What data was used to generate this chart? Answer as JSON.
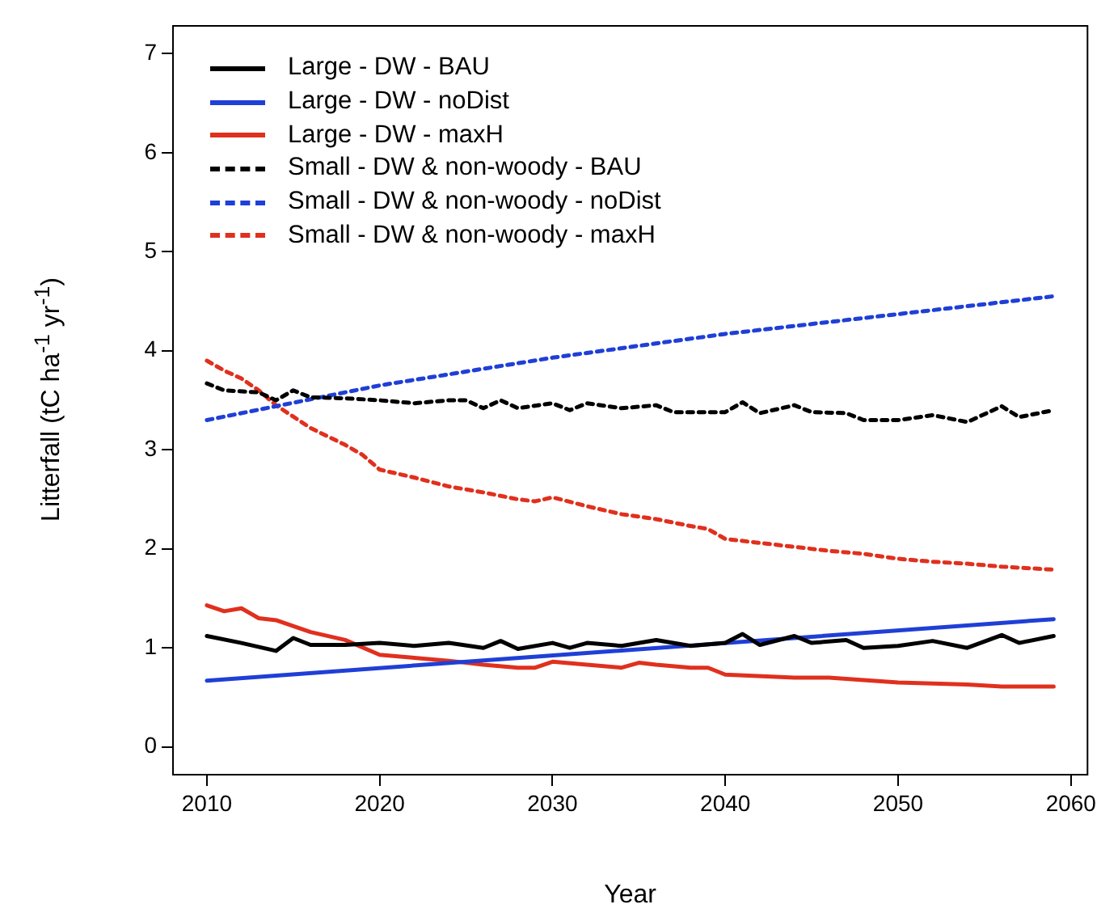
{
  "chart_data": {
    "type": "line",
    "xlabel": "Year",
    "ylabel": "Litterfall (tC ha$^{-1}$ yr$^{-1}$)",
    "xlim": [
      2008.04,
      2060.96
    ],
    "ylim": [
      -0.28,
      7.28
    ],
    "xticks": [
      2010,
      2020,
      2030,
      2040,
      2050,
      2060
    ],
    "yticks": [
      0,
      1,
      2,
      3,
      4,
      5,
      6,
      7
    ],
    "legend": "top left",
    "marker": "none",
    "series": [
      {
        "name": "Large - DW - BAU",
        "color": "#000000",
        "line_style": "solid",
        "x": [
          2010,
          2012,
          2014,
          2015,
          2016,
          2018,
          2020,
          2022,
          2024,
          2026,
          2027,
          2028,
          2030,
          2031,
          2032,
          2034,
          2036,
          2038,
          2040,
          2041,
          2042,
          2044,
          2045,
          2047,
          2048,
          2050,
          2052,
          2054,
          2056,
          2057,
          2059
        ],
        "values": [
          1.12,
          1.05,
          0.97,
          1.1,
          1.03,
          1.03,
          1.05,
          1.02,
          1.05,
          1.0,
          1.07,
          0.99,
          1.05,
          1.0,
          1.05,
          1.02,
          1.08,
          1.02,
          1.05,
          1.14,
          1.03,
          1.12,
          1.05,
          1.08,
          1.0,
          1.02,
          1.07,
          1.0,
          1.13,
          1.05,
          1.12
        ]
      },
      {
        "name": "Large - DW - noDist",
        "color": "#1f3fd6",
        "line_style": "solid",
        "x": [
          2010,
          2059
        ],
        "values": [
          0.67,
          1.29
        ]
      },
      {
        "name": "Large - DW - maxH",
        "color": "#e0301e",
        "line_style": "solid",
        "x": [
          2010,
          2011,
          2012,
          2013,
          2014,
          2016,
          2018,
          2020,
          2022,
          2024,
          2026,
          2028,
          2029,
          2030,
          2032,
          2034,
          2035,
          2036,
          2038,
          2039,
          2040,
          2044,
          2046,
          2050,
          2054,
          2056,
          2059
        ],
        "values": [
          1.43,
          1.37,
          1.4,
          1.3,
          1.28,
          1.16,
          1.08,
          0.93,
          0.9,
          0.87,
          0.83,
          0.8,
          0.8,
          0.86,
          0.83,
          0.8,
          0.85,
          0.83,
          0.8,
          0.8,
          0.73,
          0.7,
          0.7,
          0.65,
          0.63,
          0.61,
          0.61
        ]
      },
      {
        "name": "Small - DW & non-woody - BAU",
        "color": "#000000",
        "line_style": "dashed",
        "x": [
          2010,
          2011,
          2013,
          2014,
          2015,
          2016,
          2018,
          2020,
          2022,
          2024,
          2025,
          2026,
          2027,
          2028,
          2030,
          2031,
          2032,
          2034,
          2036,
          2037,
          2040,
          2041,
          2042,
          2044,
          2045,
          2047,
          2048,
          2050,
          2052,
          2054,
          2056,
          2057,
          2059
        ],
        "values": [
          3.67,
          3.6,
          3.58,
          3.5,
          3.6,
          3.53,
          3.52,
          3.5,
          3.47,
          3.5,
          3.5,
          3.42,
          3.5,
          3.42,
          3.47,
          3.4,
          3.47,
          3.42,
          3.45,
          3.38,
          3.38,
          3.48,
          3.37,
          3.45,
          3.38,
          3.37,
          3.3,
          3.3,
          3.35,
          3.28,
          3.44,
          3.33,
          3.4
        ]
      },
      {
        "name": "Small - DW & non-woody - noDist",
        "color": "#1f3fd6",
        "line_style": "dashed",
        "x": [
          2010,
          2020,
          2030,
          2040,
          2050,
          2059
        ],
        "values": [
          3.3,
          3.65,
          3.93,
          4.17,
          4.37,
          4.55
        ]
      },
      {
        "name": "Small - DW & non-woody - maxH",
        "color": "#e0301e",
        "line_style": "dashed",
        "x": [
          2010,
          2011,
          2012,
          2013,
          2014,
          2016,
          2018,
          2019,
          2020,
          2022,
          2024,
          2026,
          2028,
          2029,
          2030,
          2032,
          2034,
          2036,
          2038,
          2039,
          2040,
          2042,
          2044,
          2046,
          2048,
          2050,
          2052,
          2054,
          2056,
          2059
        ],
        "values": [
          3.9,
          3.8,
          3.72,
          3.6,
          3.45,
          3.22,
          3.05,
          2.95,
          2.8,
          2.72,
          2.63,
          2.57,
          2.5,
          2.48,
          2.52,
          2.43,
          2.35,
          2.3,
          2.23,
          2.2,
          2.1,
          2.06,
          2.02,
          1.98,
          1.95,
          1.9,
          1.87,
          1.85,
          1.82,
          1.79
        ]
      }
    ]
  }
}
